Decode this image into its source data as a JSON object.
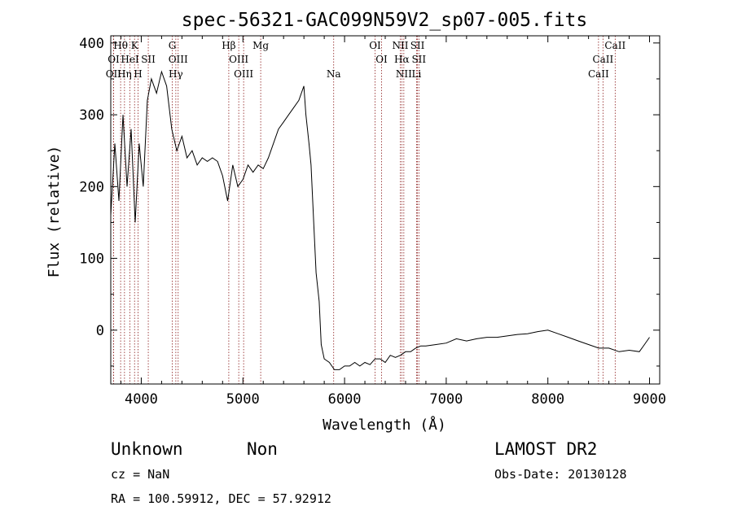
{
  "chart_data": {
    "type": "line",
    "title": "spec-56321-GAC099N59V2_sp07-005.fits",
    "xlabel": "Wavelength (Å)",
    "ylabel": "Flux (relative)",
    "xlim": [
      3700,
      9100
    ],
    "ylim": [
      -75,
      410
    ],
    "xticks": [
      4000,
      5000,
      6000,
      7000,
      8000,
      9000
    ],
    "yticks": [
      0,
      100,
      200,
      300,
      400
    ],
    "grid": false,
    "series": [
      {
        "color": "#000000",
        "x": [
          3700,
          3740,
          3780,
          3820,
          3860,
          3900,
          3940,
          3980,
          4020,
          4060,
          4100,
          4150,
          4200,
          4250,
          4300,
          4350,
          4400,
          4450,
          4500,
          4550,
          4600,
          4650,
          4700,
          4750,
          4800,
          4850,
          4900,
          4950,
          5000,
          5050,
          5100,
          5150,
          5200,
          5250,
          5300,
          5350,
          5400,
          5450,
          5500,
          5550,
          5600,
          5620,
          5650,
          5670,
          5700,
          5720,
          5750,
          5770,
          5800,
          5850,
          5900,
          5950,
          6000,
          6050,
          6100,
          6150,
          6200,
          6250,
          6300,
          6350,
          6400,
          6450,
          6500,
          6550,
          6600,
          6650,
          6700,
          6750,
          6800,
          6900,
          7000,
          7100,
          7200,
          7300,
          7400,
          7500,
          7600,
          7700,
          7800,
          7900,
          8000,
          8100,
          8200,
          8300,
          8400,
          8500,
          8600,
          8700,
          8800,
          8900,
          8950,
          9000
        ],
        "values": [
          160,
          260,
          180,
          300,
          200,
          280,
          150,
          260,
          200,
          320,
          350,
          330,
          360,
          340,
          280,
          250,
          270,
          240,
          250,
          230,
          240,
          235,
          240,
          235,
          215,
          180,
          230,
          200,
          210,
          230,
          220,
          230,
          225,
          240,
          260,
          280,
          290,
          300,
          310,
          320,
          340,
          300,
          260,
          230,
          140,
          80,
          40,
          -20,
          -40,
          -45,
          -55,
          -55,
          -50,
          -50,
          -45,
          -50,
          -45,
          -48,
          -40,
          -40,
          -45,
          -35,
          -38,
          -35,
          -30,
          -30,
          -25,
          -22,
          -22,
          -20,
          -18,
          -12,
          -15,
          -12,
          -10,
          -10,
          -8,
          -6,
          -5,
          -2,
          0,
          -5,
          -10,
          -15,
          -20,
          -25,
          -25,
          -30,
          -28,
          -30,
          -20,
          -10
        ]
      }
    ],
    "spectral_lines": [
      {
        "name": "Hθ",
        "x": 3797,
        "row": 0
      },
      {
        "name": "K",
        "x": 3934,
        "row": 0
      },
      {
        "name": "G",
        "x": 4305,
        "row": 0
      },
      {
        "name": "Hβ",
        "x": 4861,
        "row": 0
      },
      {
        "name": "Mg",
        "x": 5175,
        "row": 0
      },
      {
        "name": "OI",
        "x": 6300,
        "row": 0
      },
      {
        "name": "NII",
        "x": 6548,
        "row": 0
      },
      {
        "name": "SII",
        "x": 6717,
        "row": 0
      },
      {
        "name": "CaII",
        "x": 8662,
        "row": 0
      },
      {
        "name": "OI",
        "x": 3728,
        "row": 1
      },
      {
        "name": "HeI",
        "x": 3889,
        "row": 1
      },
      {
        "name": "SII",
        "x": 4069,
        "row": 1
      },
      {
        "name": "OIII",
        "x": 4363,
        "row": 1
      },
      {
        "name": "OIII",
        "x": 4959,
        "row": 1
      },
      {
        "name": "OI",
        "x": 6364,
        "row": 1
      },
      {
        "name": "Hα",
        "x": 6563,
        "row": 1
      },
      {
        "name": "SII",
        "x": 6731,
        "row": 1
      },
      {
        "name": "CaII",
        "x": 8542,
        "row": 1
      },
      {
        "name": "OII",
        "x": 3727,
        "row": 2
      },
      {
        "name": "Hη",
        "x": 3835,
        "row": 2
      },
      {
        "name": "H",
        "x": 3968,
        "row": 2
      },
      {
        "name": "Hγ",
        "x": 4340,
        "row": 2
      },
      {
        "name": "OIII",
        "x": 5007,
        "row": 2
      },
      {
        "name": "Na",
        "x": 5893,
        "row": 2
      },
      {
        "name": "NII",
        "x": 6583,
        "row": 2
      },
      {
        "name": "Li",
        "x": 6708,
        "row": 2
      },
      {
        "name": "CaII",
        "x": 8498,
        "row": 2
      }
    ]
  },
  "info": {
    "object_class": "Unknown",
    "subclass": "Non",
    "survey": "LAMOST DR2",
    "redshift": "cz = NaN",
    "obs_date": "Obs-Date: 20130128",
    "coords": "RA = 100.59912, DEC =  57.92912"
  },
  "colors": {
    "spectrum": "#000000",
    "line_markers": "#8b1a1a",
    "axes": "#000000",
    "background": "#ffffff"
  }
}
